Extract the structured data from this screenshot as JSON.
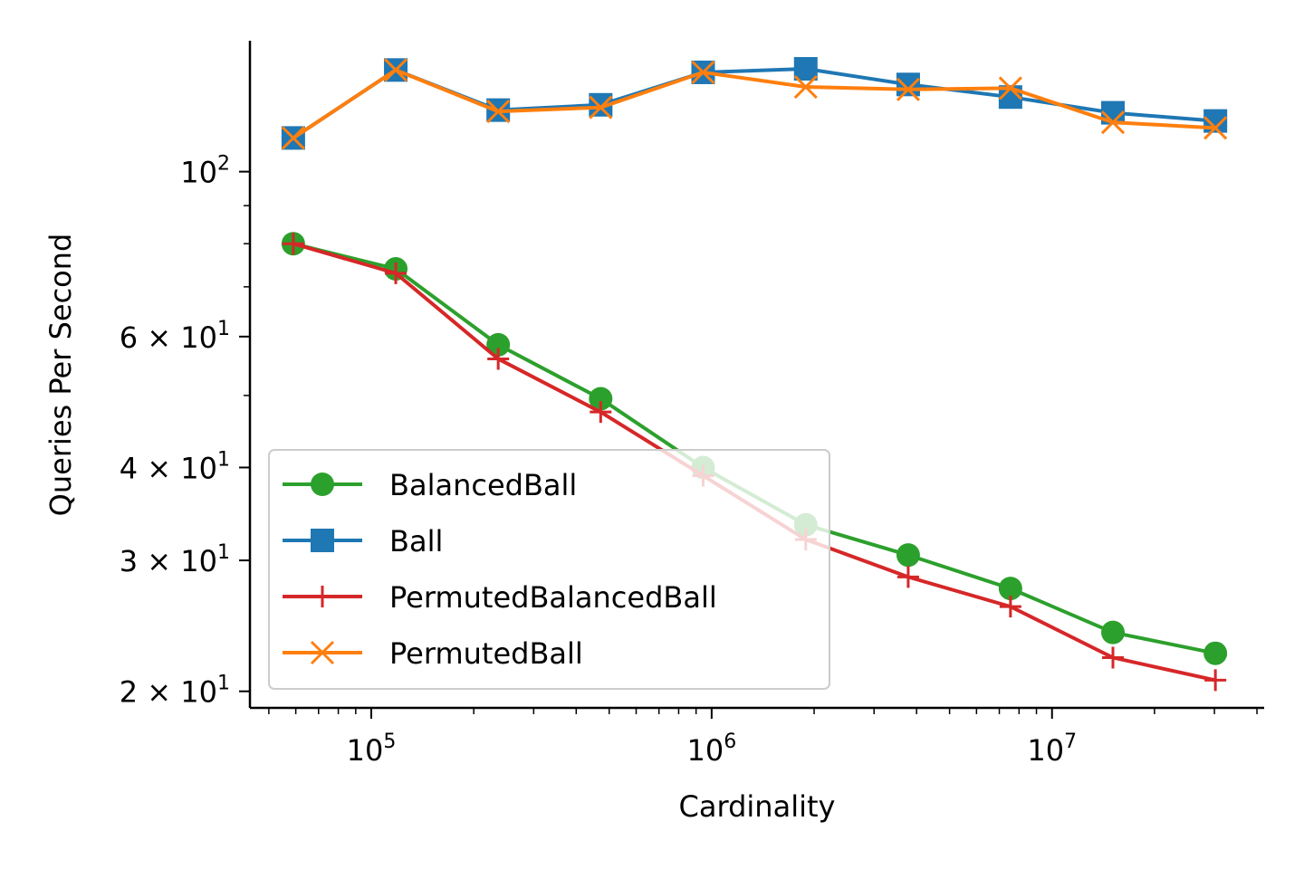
{
  "chart_data": {
    "type": "line",
    "xlabel": "Cardinality",
    "ylabel": "Queries Per Second",
    "x_scale": "log",
    "y_scale": "log",
    "xlim": [
      44000,
      42000000
    ],
    "ylim": [
      19,
      150
    ],
    "grid": false,
    "legend_position": "lower-left",
    "x": [
      59000,
      118000,
      236000,
      472000,
      944000,
      1890000,
      3780000,
      7550000,
      15100000,
      30200000
    ],
    "x_ticks": [
      {
        "value": 100000,
        "base": "10",
        "exp": "5"
      },
      {
        "value": 1000000,
        "base": "10",
        "exp": "6"
      },
      {
        "value": 10000000,
        "base": "10",
        "exp": "7"
      }
    ],
    "y_ticks": [
      {
        "value": 100,
        "base": "10",
        "exp": "2"
      },
      {
        "value": 60,
        "base": "6 × 10",
        "exp": "1"
      },
      {
        "value": 40,
        "base": "4 × 10",
        "exp": "1"
      },
      {
        "value": 30,
        "base": "3 × 10",
        "exp": "1"
      },
      {
        "value": 20,
        "base": "2 × 10",
        "exp": "1"
      }
    ],
    "series": [
      {
        "name": "BalancedBall",
        "color": "#2ca02c",
        "marker": "circle",
        "values": [
          80,
          74,
          58.5,
          49.5,
          40,
          33.5,
          30.5,
          27.5,
          24,
          22.5
        ]
      },
      {
        "name": "Ball",
        "color": "#1f77b4",
        "marker": "square",
        "values": [
          111,
          137,
          121,
          123,
          136,
          137.5,
          131,
          126,
          120,
          117
        ]
      },
      {
        "name": "PermutedBalancedBall",
        "color": "#d62728",
        "marker": "plus",
        "values": [
          80,
          73,
          56,
          47.5,
          39,
          32,
          28.5,
          26,
          22.2,
          20.7
        ]
      },
      {
        "name": "PermutedBall",
        "color": "#ff7f0e",
        "marker": "x",
        "values": [
          111,
          137,
          120.5,
          122,
          136,
          130,
          129,
          129.5,
          116.5,
          114.5
        ]
      }
    ]
  }
}
